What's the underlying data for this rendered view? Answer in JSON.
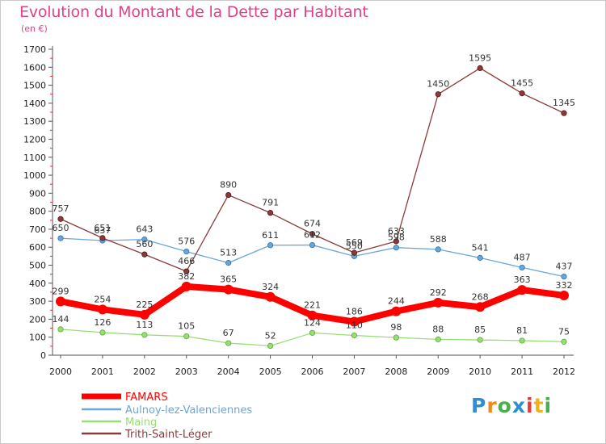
{
  "chart_data": {
    "type": "line",
    "title": "Evolution du Montant de la Dette par Habitant",
    "subtitle": "(en €)",
    "categories": [
      "2000",
      "2001",
      "2002",
      "2003",
      "2004",
      "2005",
      "2006",
      "2007",
      "2008",
      "2009",
      "2010",
      "2011",
      "2012"
    ],
    "ylim": [
      0,
      1700
    ],
    "yticks": [
      0,
      100,
      200,
      300,
      400,
      500,
      600,
      700,
      800,
      900,
      1000,
      1100,
      1200,
      1300,
      1400,
      1500,
      1600,
      1700
    ],
    "grid": false,
    "legend_position": "bottom-left",
    "series": [
      {
        "name": "FAMARS",
        "color": "#ff0000",
        "values": [
          299,
          254,
          225,
          382,
          365,
          324,
          221,
          186,
          244,
          292,
          268,
          363,
          332
        ]
      },
      {
        "name": "Aulnoy-lez-Valenciennes",
        "color": "#6aa6d6",
        "values": [
          650,
          637,
          643,
          576,
          513,
          611,
          612,
          550,
          598,
          588,
          541,
          487,
          437
        ]
      },
      {
        "name": "Maing",
        "color": "#99dd77",
        "values": [
          144,
          126,
          113,
          105,
          67,
          52,
          124,
          110,
          98,
          88,
          85,
          81,
          75
        ]
      },
      {
        "name": "Trith-Saint-Léger",
        "color": "#8b3a3a",
        "values": [
          757,
          651,
          560,
          466,
          890,
          791,
          674,
          569,
          633,
          1450,
          1595,
          1455,
          1345
        ]
      }
    ]
  },
  "logo": {
    "letters": [
      "P",
      "r",
      "o",
      "x",
      "i",
      "t",
      "i"
    ],
    "colors": [
      "#2a8fd6",
      "#f08a1c",
      "#47b04b",
      "#2a8fd6",
      "#e23b3b",
      "#f0b21c",
      "#47b04b"
    ]
  }
}
